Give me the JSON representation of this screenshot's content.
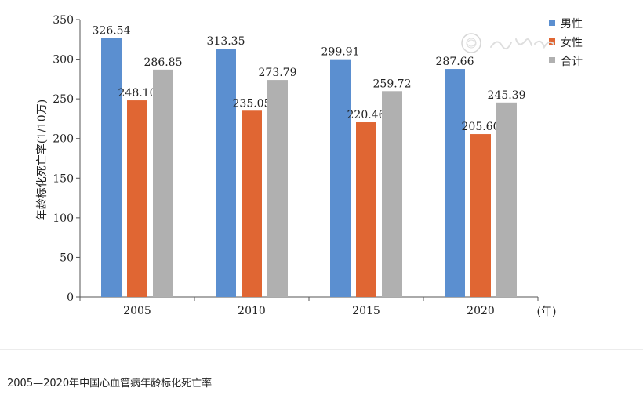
{
  "caption": "2005—2020年中国心血管病年龄标化死亡率",
  "chart_data": {
    "type": "bar",
    "categories": [
      "2005",
      "2010",
      "2015",
      "2020"
    ],
    "series": [
      {
        "name": "男性",
        "values": [
          326.54,
          313.35,
          299.91,
          287.66
        ],
        "color": "#5b8fd0"
      },
      {
        "name": "女性",
        "values": [
          248.1,
          235.05,
          220.46,
          205.6
        ],
        "color": "#e06633"
      },
      {
        "name": "合计",
        "values": [
          286.85,
          273.79,
          259.72,
          245.39
        ],
        "color": "#b0b0b0"
      }
    ],
    "data_labels": [
      [
        "326.54",
        "313.35",
        "299.91",
        "287.66"
      ],
      [
        "248.10",
        "235.05",
        "220.46",
        "205.60"
      ],
      [
        "286.85",
        "273.79",
        "259.72",
        "245.39"
      ]
    ],
    "ylabel": "年龄标化死亡率(1/10万)",
    "xlabel": "(年)",
    "ylim": [
      0,
      350
    ],
    "yticks": [
      0,
      50,
      100,
      150,
      200,
      250,
      300,
      350
    ],
    "grid": false,
    "legend": "top-right"
  }
}
